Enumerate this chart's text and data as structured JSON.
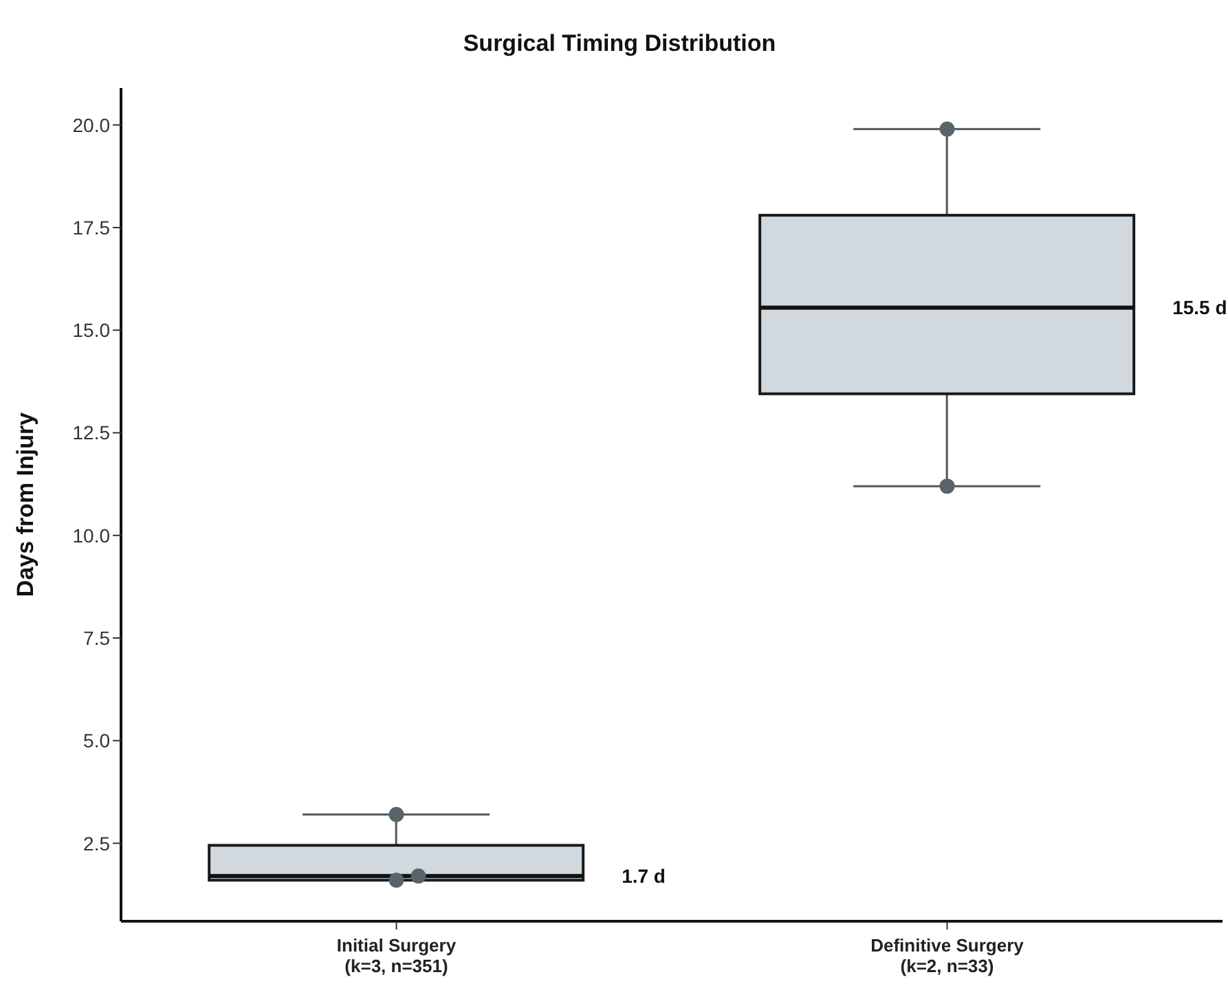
{
  "chart_data": {
    "type": "box",
    "title": "Surgical Timing Distribution",
    "ylabel": "Days from Injury",
    "categories": [
      "Initial Surgery\n(k=3, n=351)",
      "Definitive Surgery\n(k=2, n=33)"
    ],
    "series": [
      {
        "type": "box",
        "color": "#d1d9df",
        "boxes": [
          {
            "low": 1.6,
            "q1": 1.6,
            "median": 1.7,
            "q3": 2.45,
            "high": 3.2
          },
          {
            "low": 11.2,
            "q1": 13.45,
            "median": 15.55,
            "q3": 17.8,
            "high": 19.9
          }
        ]
      },
      {
        "type": "scatter",
        "color": "#59636a",
        "x": [
          "Initial Surgery\n(k=3, n=351)",
          "Initial Surgery\n(k=3, n=351)",
          "Initial Surgery\n(k=3, n=351)",
          "Definitive Surgery\n(k=2, n=33)",
          "Definitive Surgery\n(k=2, n=33)"
        ],
        "values": [
          3.2,
          1.6,
          1.7,
          19.9,
          11.2
        ]
      }
    ],
    "annotations": [
      "1.7 d",
      "15.5 d"
    ],
    "ylim": [
      0.6,
      20.9
    ],
    "yticks": [
      {
        "value": 2.5,
        "label": "2.5"
      },
      {
        "value": 5,
        "label": "5.0"
      },
      {
        "value": 7.5,
        "label": "7.5"
      },
      {
        "value": 10,
        "label": "10.0"
      },
      {
        "value": 12.5,
        "label": "12.5"
      },
      {
        "value": 15,
        "label": "15.0"
      },
      {
        "value": 17.5,
        "label": "17.5"
      },
      {
        "value": 20,
        "label": "20.0"
      }
    ],
    "grid": false,
    "legend": false,
    "marker": "circle"
  }
}
